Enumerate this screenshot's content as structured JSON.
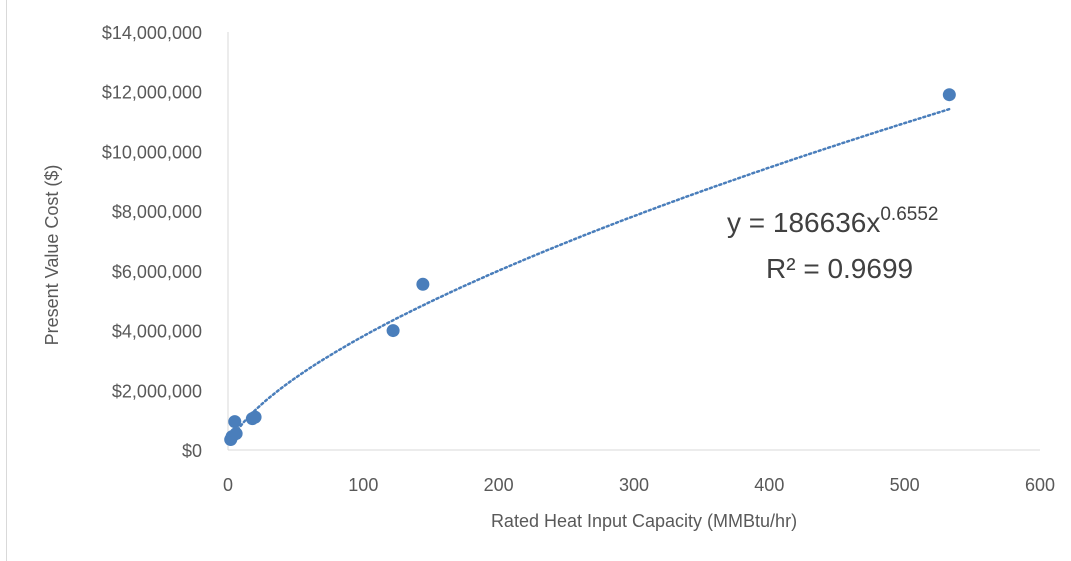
{
  "chart_data": {
    "type": "scatter",
    "title": "",
    "xlabel": "Rated Heat Input Capacity (MMBtu/hr)",
    "ylabel": "Present Value Cost ($)",
    "xlim": [
      0,
      600
    ],
    "ylim": [
      0,
      14000000
    ],
    "x_ticks": [
      "0",
      "100",
      "200",
      "300",
      "400",
      "500",
      "600"
    ],
    "y_ticks": [
      "$0",
      "$2,000,000",
      "$4,000,000",
      "$6,000,000",
      "$8,000,000",
      "$10,000,000",
      "$12,000,000",
      "$14,000,000"
    ],
    "x_tick_values": [
      0,
      100,
      200,
      300,
      400,
      500,
      600
    ],
    "y_tick_values": [
      0,
      2000000,
      4000000,
      6000000,
      8000000,
      10000000,
      12000000,
      14000000
    ],
    "grid": false,
    "legend": "none",
    "series": [
      {
        "color": "#4a7ebb",
        "points": [
          [
            2,
            350000
          ],
          [
            3,
            450000
          ],
          [
            5,
            950000
          ],
          [
            6,
            550000
          ],
          [
            18,
            1050000
          ],
          [
            20,
            1100000
          ],
          [
            122,
            4000000
          ],
          [
            144,
            5550000
          ],
          [
            533,
            11900000
          ]
        ]
      }
    ],
    "trendline": {
      "kind": "power",
      "coefficient": 186636,
      "exponent": 0.6552,
      "x_range": [
        5,
        533
      ],
      "color": "#4a7ebb",
      "style": "dotted"
    },
    "annotations": {
      "equation_base": "y = 186636x",
      "equation_exponent": "0.6552",
      "r_squared": "R² = 0.9699"
    }
  }
}
